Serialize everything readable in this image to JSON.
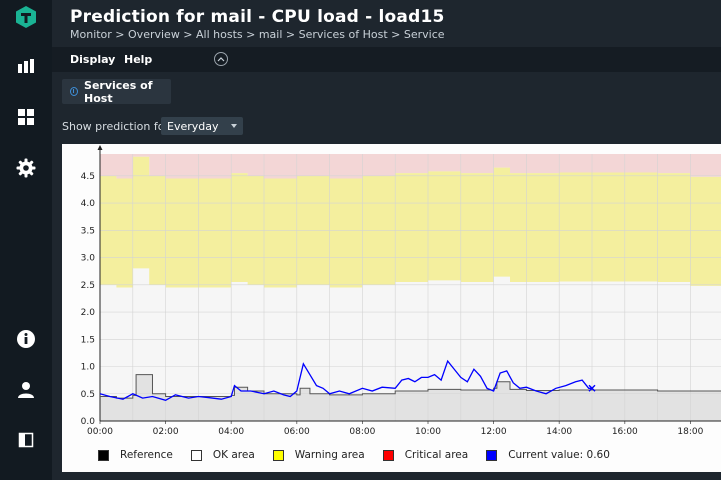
{
  "page": {
    "title": "Prediction for mail - CPU load - load15",
    "breadcrumb": "Monitor > Overview > All hosts > mail > Services of Host > Service"
  },
  "sidebar": {
    "icons": [
      "logo-icon",
      "monitor-icon",
      "dashboard-icon",
      "setup-icon",
      "help-icon",
      "user-icon",
      "sidebar-toggle-icon"
    ]
  },
  "menu": {
    "display": "Display",
    "help": "Help"
  },
  "services_button": "Services of Host",
  "prediction": {
    "label": "Show prediction for",
    "selected": "Everyday"
  },
  "colors": {
    "accent": "#1ab394",
    "reference": "#000000",
    "ok_area": "#ffffff",
    "warning_area": "#ffff00",
    "critical_area": "#ff0000",
    "current": "#0000ff"
  },
  "legend": [
    {
      "label": "Reference",
      "color": "#000000"
    },
    {
      "label": "OK area",
      "color": "#ffffff"
    },
    {
      "label": "Warning area",
      "color": "#ffff00"
    },
    {
      "label": "Critical area",
      "color": "#ff0000"
    },
    {
      "label": "Current value: 0.60",
      "color": "#0000ff"
    }
  ],
  "chart_data": {
    "type": "area",
    "xlabel": "",
    "ylabel": "",
    "x_ticks": [
      "00:00",
      "02:00",
      "04:00",
      "06:00",
      "08:00",
      "10:00",
      "12:00",
      "14:00",
      "16:00",
      "18:00"
    ],
    "y_ticks": [
      "0.0",
      "0.5",
      "1.0",
      "1.5",
      "2.0",
      "2.5",
      "3.0",
      "3.5",
      "4.0",
      "4.5"
    ],
    "ylim": [
      0,
      4.9
    ],
    "xlim_hours": [
      0,
      19.0
    ],
    "grid": true,
    "reference": [
      [
        0.0,
        0.45
      ],
      [
        0.5,
        0.42
      ],
      [
        1.0,
        0.47
      ],
      [
        1.1,
        0.85
      ],
      [
        1.5,
        0.85
      ],
      [
        1.6,
        0.5
      ],
      [
        2.0,
        0.45
      ],
      [
        3.0,
        0.45
      ],
      [
        4.0,
        0.47
      ],
      [
        4.1,
        0.62
      ],
      [
        4.5,
        0.55
      ],
      [
        5.0,
        0.5
      ],
      [
        6.0,
        0.48
      ],
      [
        6.1,
        0.6
      ],
      [
        6.4,
        0.5
      ],
      [
        7.0,
        0.48
      ],
      [
        8.0,
        0.5
      ],
      [
        9.0,
        0.55
      ],
      [
        10.0,
        0.58
      ],
      [
        11.0,
        0.57
      ],
      [
        12.0,
        0.6
      ],
      [
        12.1,
        0.72
      ],
      [
        12.5,
        0.58
      ],
      [
        13.0,
        0.56
      ],
      [
        14.0,
        0.57
      ],
      [
        15.0,
        0.57
      ],
      [
        16.0,
        0.57
      ],
      [
        17.0,
        0.55
      ],
      [
        18.0,
        0.55
      ],
      [
        19.0,
        0.5
      ]
    ],
    "warning_lower": [
      [
        0.0,
        2.5
      ],
      [
        0.5,
        2.45
      ],
      [
        1.0,
        2.8
      ],
      [
        1.5,
        2.5
      ],
      [
        2.0,
        2.45
      ],
      [
        3.0,
        2.45
      ],
      [
        4.0,
        2.55
      ],
      [
        4.5,
        2.5
      ],
      [
        5.0,
        2.45
      ],
      [
        6.0,
        2.5
      ],
      [
        7.0,
        2.45
      ],
      [
        8.0,
        2.5
      ],
      [
        9.0,
        2.55
      ],
      [
        10.0,
        2.58
      ],
      [
        11.0,
        2.55
      ],
      [
        12.0,
        2.65
      ],
      [
        12.5,
        2.55
      ],
      [
        13.0,
        2.55
      ],
      [
        14.0,
        2.56
      ],
      [
        15.0,
        2.56
      ],
      [
        16.0,
        2.56
      ],
      [
        17.0,
        2.55
      ],
      [
        18.0,
        2.48
      ],
      [
        19.0,
        2.46
      ]
    ],
    "critical_lower": [
      [
        0.0,
        4.5
      ],
      [
        0.5,
        4.45
      ],
      [
        1.0,
        4.85
      ],
      [
        1.5,
        4.5
      ],
      [
        2.0,
        4.45
      ],
      [
        3.0,
        4.45
      ],
      [
        4.0,
        4.55
      ],
      [
        4.5,
        4.5
      ],
      [
        5.0,
        4.45
      ],
      [
        6.0,
        4.5
      ],
      [
        7.0,
        4.45
      ],
      [
        8.0,
        4.5
      ],
      [
        9.0,
        4.55
      ],
      [
        10.0,
        4.58
      ],
      [
        11.0,
        4.55
      ],
      [
        12.0,
        4.65
      ],
      [
        12.5,
        4.55
      ],
      [
        13.0,
        4.55
      ],
      [
        14.0,
        4.56
      ],
      [
        15.0,
        4.56
      ],
      [
        16.0,
        4.56
      ],
      [
        17.0,
        4.55
      ],
      [
        18.0,
        4.48
      ],
      [
        19.0,
        4.46
      ]
    ],
    "current_value": [
      [
        0.0,
        0.5
      ],
      [
        0.3,
        0.45
      ],
      [
        0.7,
        0.4
      ],
      [
        1.0,
        0.5
      ],
      [
        1.3,
        0.42
      ],
      [
        1.6,
        0.45
      ],
      [
        2.0,
        0.38
      ],
      [
        2.3,
        0.48
      ],
      [
        2.7,
        0.42
      ],
      [
        3.0,
        0.45
      ],
      [
        3.3,
        0.43
      ],
      [
        3.7,
        0.4
      ],
      [
        4.0,
        0.45
      ],
      [
        4.1,
        0.65
      ],
      [
        4.3,
        0.55
      ],
      [
        4.6,
        0.55
      ],
      [
        5.0,
        0.5
      ],
      [
        5.3,
        0.55
      ],
      [
        5.6,
        0.48
      ],
      [
        5.8,
        0.45
      ],
      [
        6.0,
        0.55
      ],
      [
        6.2,
        1.05
      ],
      [
        6.4,
        0.85
      ],
      [
        6.6,
        0.65
      ],
      [
        6.8,
        0.6
      ],
      [
        7.0,
        0.5
      ],
      [
        7.3,
        0.55
      ],
      [
        7.6,
        0.5
      ],
      [
        8.0,
        0.6
      ],
      [
        8.3,
        0.55
      ],
      [
        8.6,
        0.62
      ],
      [
        9.0,
        0.6
      ],
      [
        9.2,
        0.75
      ],
      [
        9.4,
        0.78
      ],
      [
        9.6,
        0.72
      ],
      [
        9.8,
        0.8
      ],
      [
        10.0,
        0.8
      ],
      [
        10.2,
        0.85
      ],
      [
        10.4,
        0.75
      ],
      [
        10.6,
        1.1
      ],
      [
        10.8,
        0.95
      ],
      [
        11.0,
        0.8
      ],
      [
        11.2,
        0.72
      ],
      [
        11.4,
        0.95
      ],
      [
        11.6,
        0.82
      ],
      [
        11.8,
        0.6
      ],
      [
        12.0,
        0.55
      ],
      [
        12.2,
        0.88
      ],
      [
        12.4,
        0.92
      ],
      [
        12.6,
        0.7
      ],
      [
        12.8,
        0.6
      ],
      [
        13.0,
        0.62
      ],
      [
        13.3,
        0.55
      ],
      [
        13.6,
        0.5
      ],
      [
        13.9,
        0.6
      ],
      [
        14.2,
        0.65
      ],
      [
        14.5,
        0.72
      ],
      [
        14.7,
        0.75
      ],
      [
        14.9,
        0.6
      ],
      [
        15.0,
        0.6
      ]
    ]
  }
}
